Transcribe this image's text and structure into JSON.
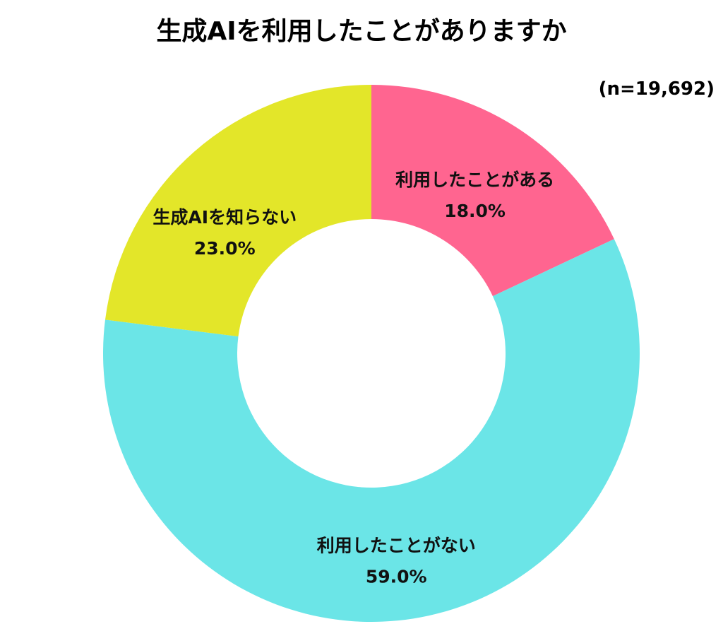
{
  "chart_data": {
    "type": "pie",
    "style": "donut",
    "title": "生成AIを利用したことがありますか",
    "sample_note": "(n=19,692)",
    "slices": [
      {
        "label": "利用したことがある",
        "value": 18.0,
        "value_label": "18.0%",
        "color": "#ff6590"
      },
      {
        "label": "利用したことがない",
        "value": 59.0,
        "value_label": "59.0%",
        "color": "#6be5e7"
      },
      {
        "label": "生成AIを知らない",
        "value": 23.0,
        "value_label": "23.0%",
        "color": "#e3e629"
      }
    ],
    "start_position": "top",
    "direction": "clockwise",
    "legend": "none"
  }
}
